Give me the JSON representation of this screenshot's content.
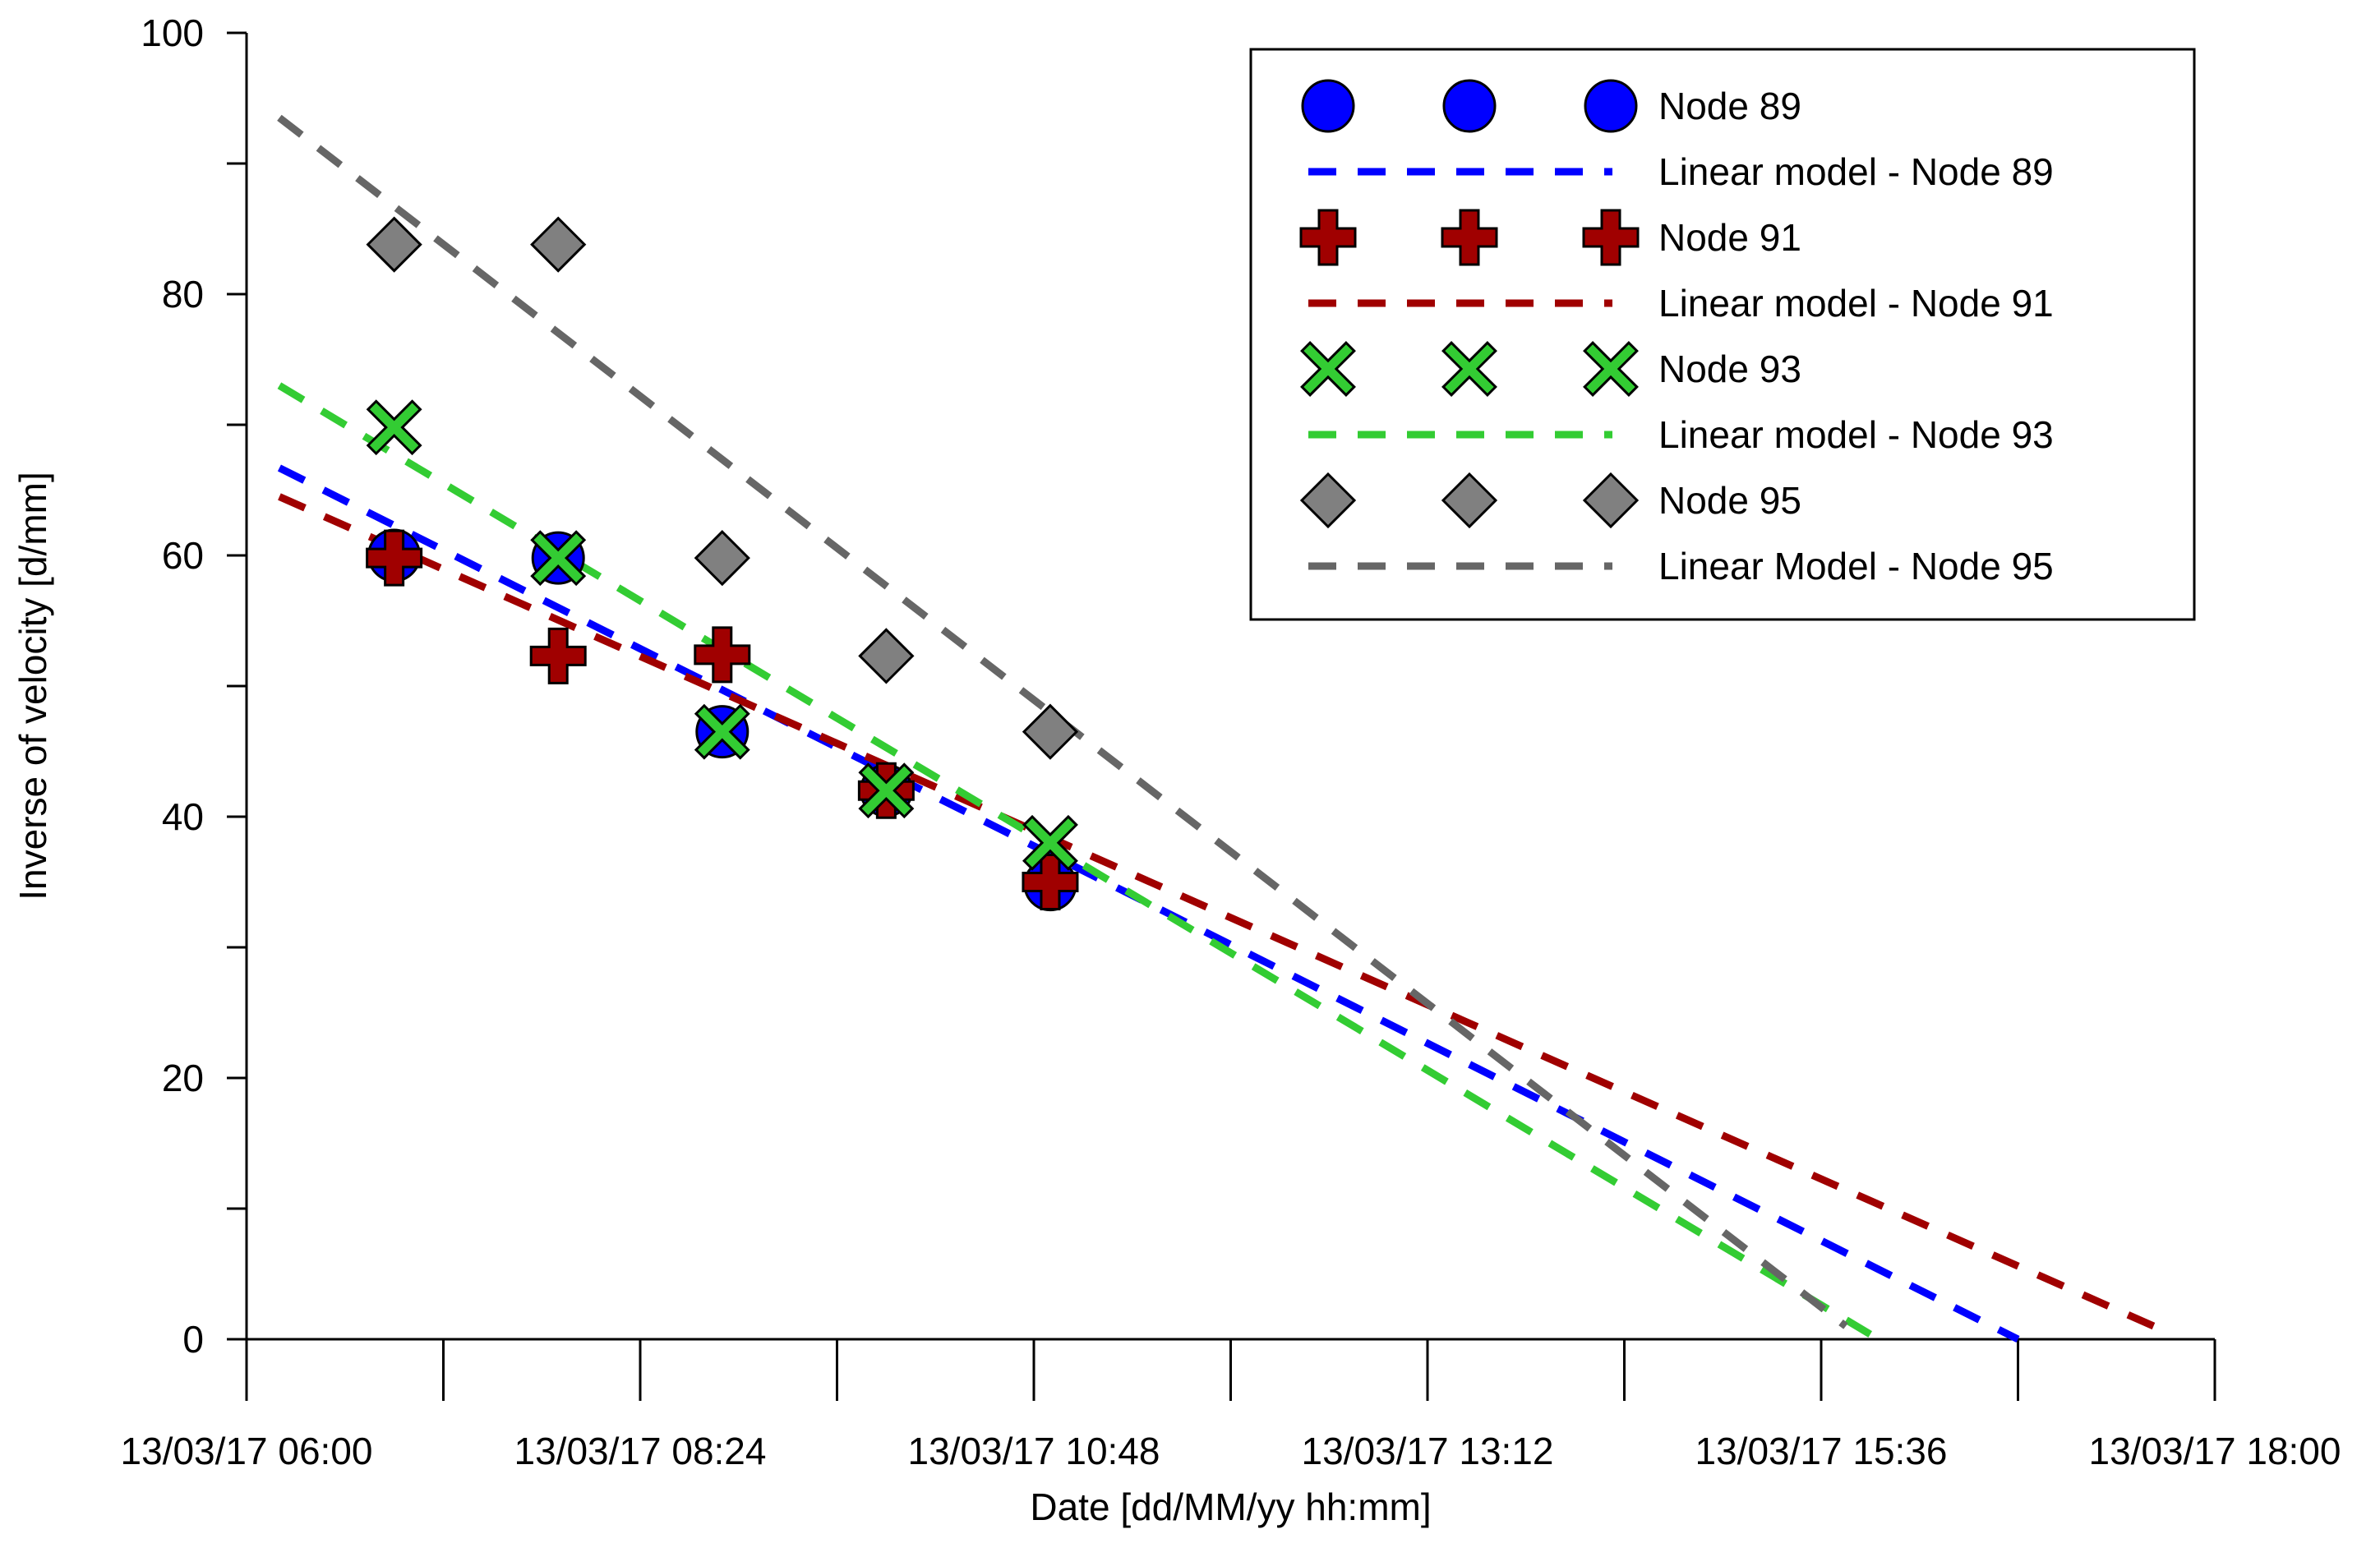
{
  "chart_data": {
    "type": "scatter",
    "title": "",
    "xlabel": "Date [dd/MM/yy hh:mm]",
    "ylabel": "Inverse of velocity [d/mm]",
    "x_unit": "hours since 13/03/17 00:00",
    "xlim": [
      6.0,
      18.0
    ],
    "ylim": [
      0,
      100
    ],
    "x_major_ticks": [
      6.0,
      8.4,
      10.8,
      13.2,
      15.6,
      18.0
    ],
    "x_tick_labels": [
      "13/03/17 06:00",
      "13/03/17 08:24",
      "13/03/17 10:48",
      "13/03/17 13:12",
      "13/03/17 15:36",
      "13/03/17 18:00"
    ],
    "x_minor_ticks": [
      7.2,
      9.6,
      12.0,
      14.4,
      16.8
    ],
    "y_major_ticks": [
      0,
      20,
      40,
      60,
      80,
      100
    ],
    "y_tick_labels": [
      "0",
      "20",
      "40",
      "60",
      "80",
      "100"
    ],
    "y_minor_ticks": [
      10,
      30,
      50,
      70,
      90
    ],
    "grid": false,
    "legend_position": "top-right",
    "series": [
      {
        "name": "Node 89",
        "kind": "points",
        "marker": "circle",
        "color": "#0000FF",
        "x": [
          6.9,
          7.9,
          8.9,
          9.9,
          10.9
        ],
        "y": [
          60.0,
          59.8,
          46.5,
          42.0,
          34.8
        ]
      },
      {
        "name": "Linear model - Node 89",
        "kind": "line",
        "color": "#0000FF",
        "x": [
          6.2,
          16.8
        ],
        "y": [
          66.7,
          0
        ]
      },
      {
        "name": "Node 91",
        "kind": "points",
        "marker": "plus",
        "color": "#A00000",
        "x": [
          6.9,
          7.9,
          8.9,
          9.9,
          10.9
        ],
        "y": [
          59.8,
          52.3,
          52.4,
          42.0,
          35.0
        ]
      },
      {
        "name": "Linear model - Node 91",
        "kind": "line",
        "color": "#A00000",
        "x": [
          6.2,
          17.7
        ],
        "y": [
          64.5,
          0.6
        ]
      },
      {
        "name": "Node 93",
        "kind": "points",
        "marker": "x",
        "color": "#33CC33",
        "x": [
          6.9,
          7.9,
          8.9,
          9.9,
          10.9
        ],
        "y": [
          69.8,
          59.8,
          46.5,
          42.0,
          38.0
        ]
      },
      {
        "name": "Linear model - Node 93",
        "kind": "line",
        "color": "#33CC33",
        "x": [
          6.2,
          15.95
        ],
        "y": [
          73.0,
          0
        ]
      },
      {
        "name": "Node 95",
        "kind": "points",
        "marker": "diamond",
        "color": "#808080",
        "x": [
          6.9,
          7.9,
          8.9,
          9.9,
          10.9
        ],
        "y": [
          83.8,
          83.8,
          59.8,
          52.3,
          46.5
        ]
      },
      {
        "name": "Linear Model - Node 95",
        "kind": "line",
        "color": "#666666",
        "x": [
          6.2,
          15.75
        ],
        "y": [
          93.5,
          1.0
        ]
      }
    ]
  }
}
